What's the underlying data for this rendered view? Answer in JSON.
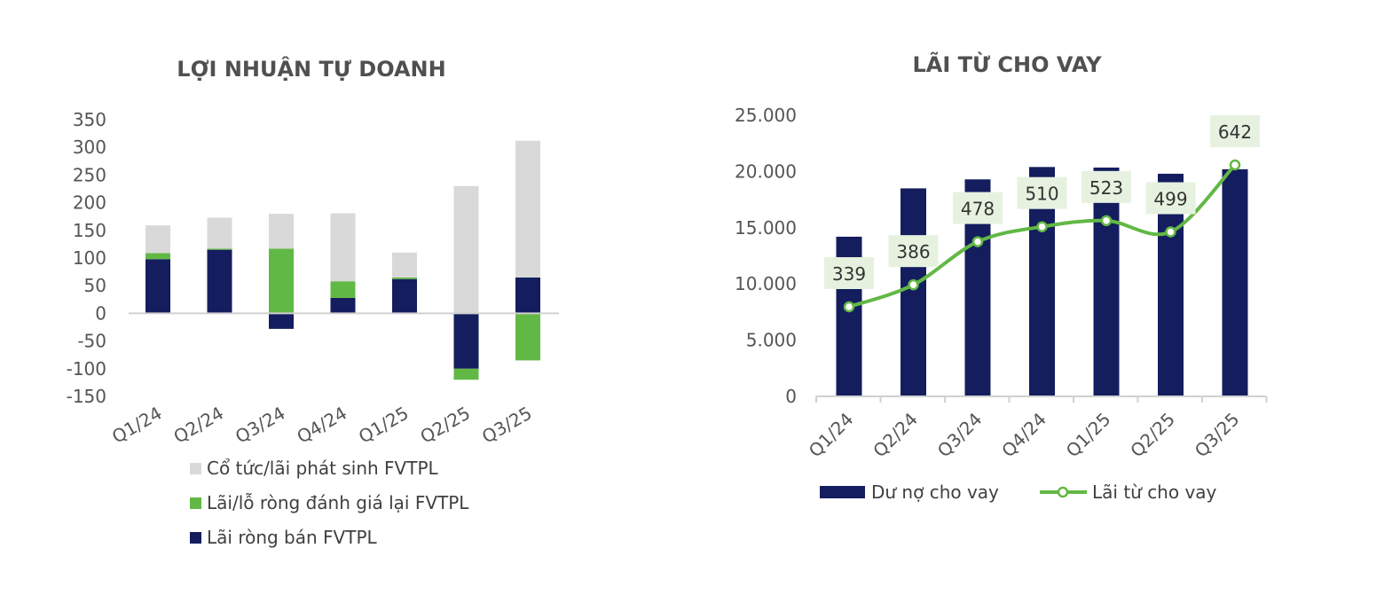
{
  "chart_data": [
    {
      "type": "bar",
      "stacked": true,
      "title": "LỢI NHUẬN TỰ DOANH",
      "categories": [
        "Q1/24",
        "Q2/24",
        "Q3/24",
        "Q4/24",
        "Q1/25",
        "Q2/25",
        "Q3/25"
      ],
      "ylim": [
        -150,
        350
      ],
      "yticks": [
        "350",
        "300",
        "250",
        "200",
        "150",
        "100",
        "50",
        "0",
        "-50",
        "-100",
        "-150"
      ],
      "ytick_values": [
        350,
        300,
        250,
        200,
        150,
        100,
        50,
        0,
        -50,
        -100,
        -150
      ],
      "legend_position": "bottom",
      "series": [
        {
          "name": "Lãi ròng bán FVTPL",
          "color": "#141d5e",
          "values": [
            98,
            115,
            -28,
            28,
            62,
            -100,
            65
          ]
        },
        {
          "name": "Lãi/lỗ ròng đánh giá lại FVTPL",
          "color": "#62b845",
          "values": [
            11,
            2,
            117,
            30,
            3,
            -20,
            -85
          ]
        },
        {
          "name": "Cổ tức/lãi phát sinh FVTPL",
          "color": "#d9d9d9",
          "values": [
            50,
            56,
            63,
            123,
            45,
            230,
            247
          ]
        }
      ],
      "legend_order": [
        "Cổ tức/lãi phát sinh FVTPL",
        "Lãi/lỗ ròng đánh giá lại FVTPL",
        "Lãi ròng bán FVTPL"
      ]
    },
    {
      "type": "bar+line",
      "title": "LÃI TỪ CHO VAY",
      "categories": [
        "Q1/24",
        "Q2/24",
        "Q3/24",
        "Q4/24",
        "Q1/25",
        "Q2/25",
        "Q3/25"
      ],
      "ylim": [
        0,
        25000
      ],
      "yticks": [
        "25.000",
        "20.000",
        "15.000",
        "10.000",
        "5.000",
        "0"
      ],
      "ytick_values": [
        25000,
        20000,
        15000,
        10000,
        5000,
        0
      ],
      "legend_position": "bottom",
      "bar_series": {
        "name": "Dư nợ cho vay",
        "color": "#141d5e",
        "values": [
          14200,
          18500,
          19300,
          20400,
          20350,
          19800,
          20200
        ]
      },
      "line_series": {
        "name": "Lãi từ cho vay",
        "color": "#62b845",
        "values": [
          339,
          386,
          478,
          510,
          523,
          499,
          642
        ],
        "labels": [
          "339",
          "386",
          "478",
          "510",
          "523",
          "499",
          "642"
        ]
      }
    }
  ]
}
